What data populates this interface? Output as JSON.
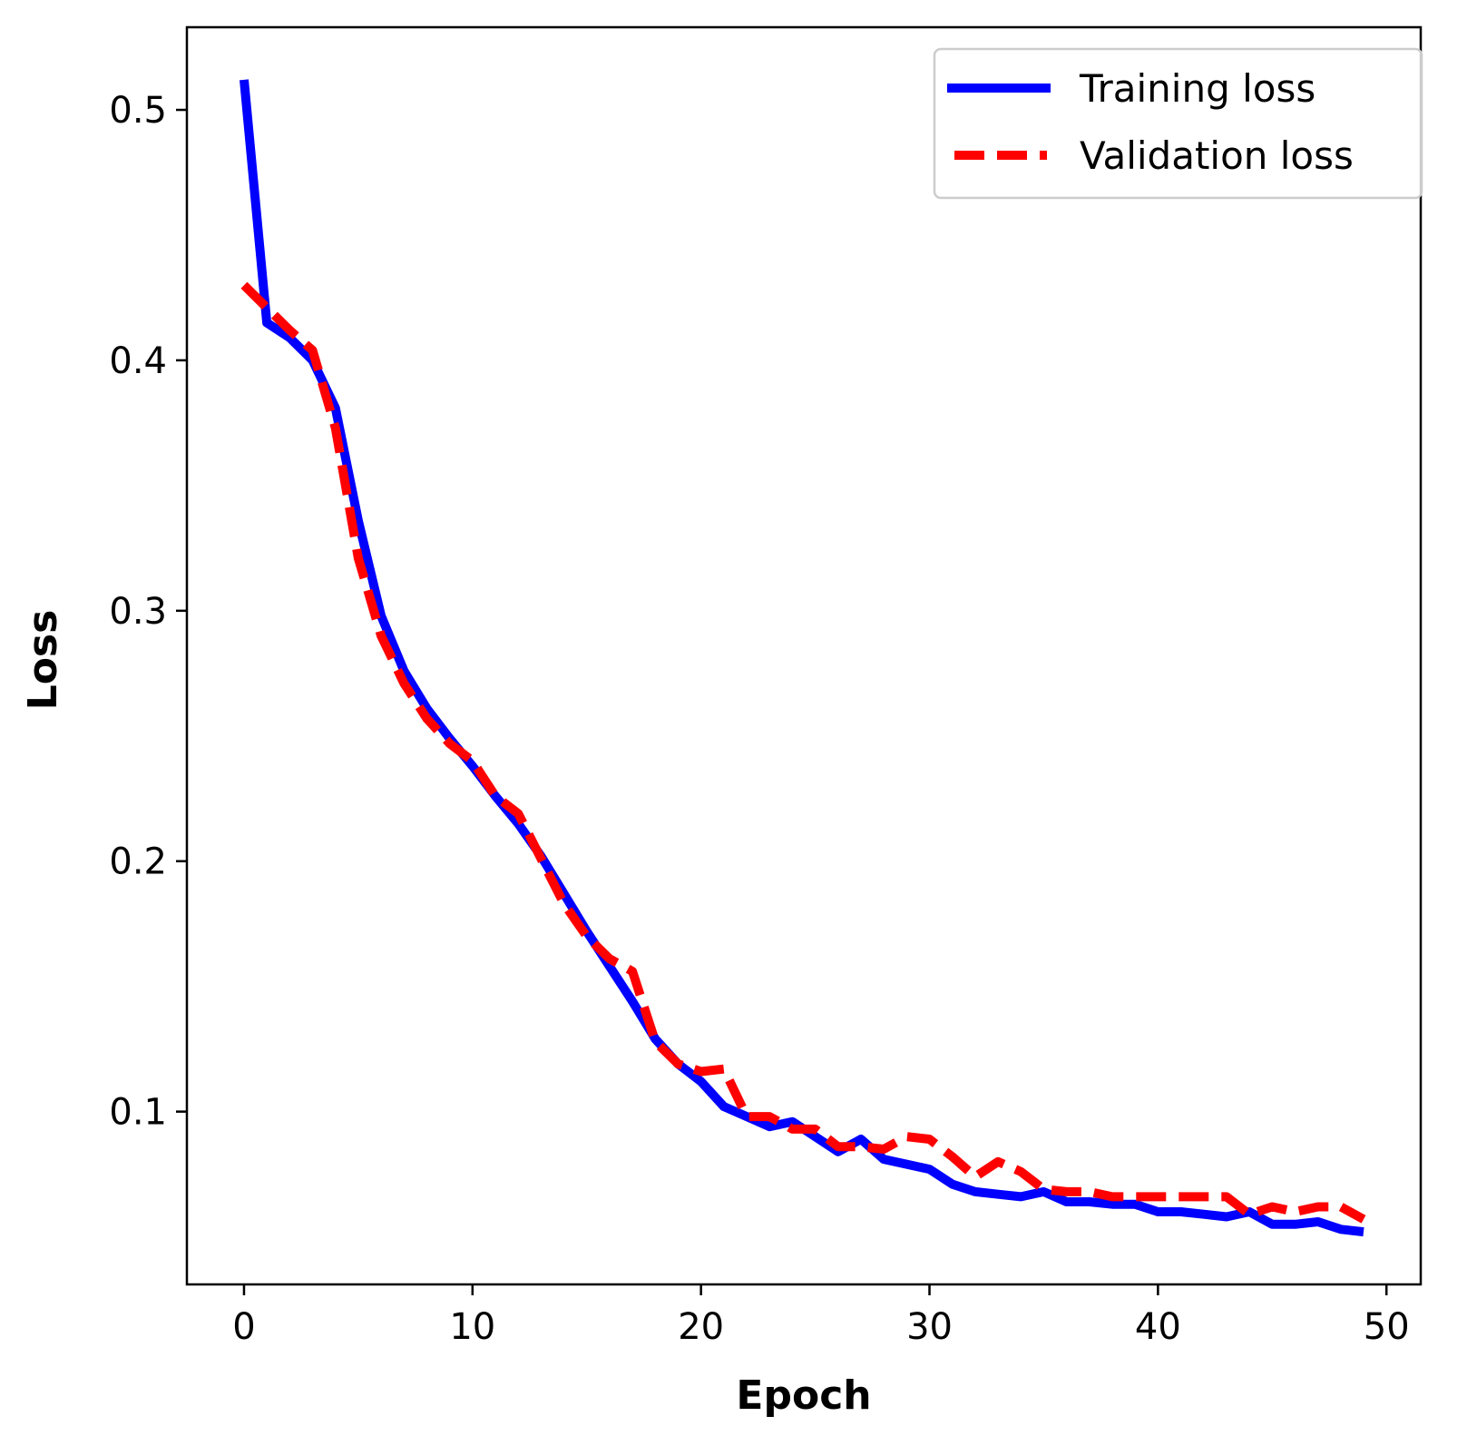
{
  "chart_data": {
    "type": "line",
    "title": "",
    "xlabel": "Epoch",
    "ylabel": "Loss",
    "xlim": [
      -2.5,
      51.5
    ],
    "ylim": [
      0.031,
      0.533
    ],
    "xticks": [
      0,
      10,
      20,
      30,
      40,
      50
    ],
    "xtick_labels": [
      "0",
      "10",
      "20",
      "30",
      "40",
      "50"
    ],
    "yticks": [
      0.1,
      0.2,
      0.3,
      0.4,
      0.5
    ],
    "ytick_labels": [
      "0.1",
      "0.2",
      "0.3",
      "0.4",
      "0.5"
    ],
    "grid": false,
    "legend_position": "top-right",
    "x": [
      0,
      1,
      2,
      3,
      4,
      5,
      6,
      7,
      8,
      9,
      10,
      11,
      12,
      13,
      14,
      15,
      16,
      17,
      18,
      19,
      20,
      21,
      22,
      23,
      24,
      25,
      26,
      27,
      28,
      29,
      30,
      31,
      32,
      33,
      34,
      35,
      36,
      37,
      38,
      39,
      40,
      41,
      42,
      43,
      44,
      45,
      46,
      47,
      48,
      49
    ],
    "series": [
      {
        "name": "Training loss",
        "color": "#0000ff",
        "style": "solid",
        "values": [
          0.512,
          0.415,
          0.409,
          0.4,
          0.381,
          0.336,
          0.298,
          0.276,
          0.261,
          0.249,
          0.238,
          0.226,
          0.215,
          0.202,
          0.187,
          0.172,
          0.158,
          0.144,
          0.129,
          0.119,
          0.112,
          0.102,
          0.098,
          0.094,
          0.096,
          0.09,
          0.084,
          0.089,
          0.081,
          0.079,
          0.077,
          0.071,
          0.068,
          0.067,
          0.066,
          0.068,
          0.064,
          0.064,
          0.063,
          0.063,
          0.06,
          0.06,
          0.059,
          0.058,
          0.06,
          0.055,
          0.055,
          0.056,
          0.053,
          0.052
        ]
      },
      {
        "name": "Validation loss",
        "color": "#ff0000",
        "style": "dashed",
        "values": [
          0.43,
          0.421,
          0.412,
          0.404,
          0.373,
          0.321,
          0.29,
          0.271,
          0.257,
          0.247,
          0.24,
          0.226,
          0.219,
          0.201,
          0.183,
          0.17,
          0.161,
          0.156,
          0.128,
          0.119,
          0.116,
          0.117,
          0.098,
          0.098,
          0.093,
          0.093,
          0.086,
          0.086,
          0.085,
          0.09,
          0.089,
          0.082,
          0.074,
          0.08,
          0.076,
          0.069,
          0.068,
          0.068,
          0.066,
          0.066,
          0.066,
          0.066,
          0.066,
          0.066,
          0.059,
          0.062,
          0.06,
          0.062,
          0.062,
          0.057
        ]
      }
    ]
  }
}
